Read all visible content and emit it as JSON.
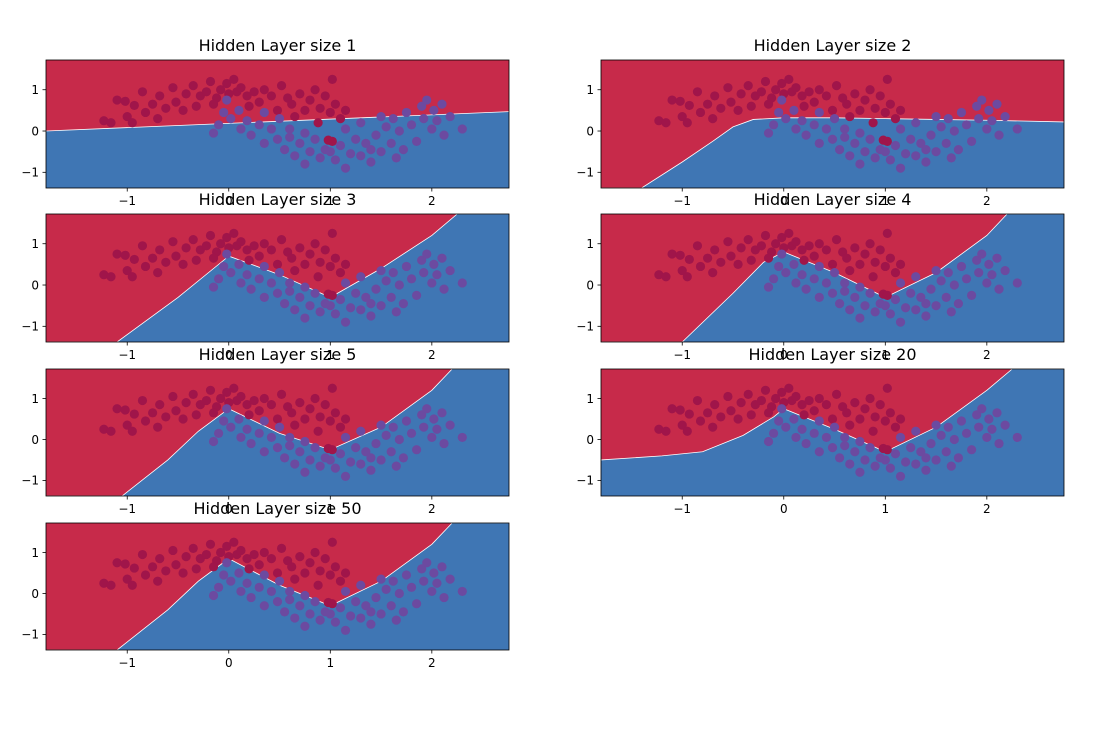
{
  "colors": {
    "class0_region": "#c72a4a",
    "class1_region": "#3f76b4",
    "class0_point": "#a0154a",
    "class1_point": "#6c4aa0",
    "axes": "#000000"
  },
  "chart_data": [
    {
      "type": "scatter",
      "title": "Hidden Layer size 1",
      "xlabel": "",
      "ylabel": "",
      "xlim": [
        -1.8,
        2.76
      ],
      "ylim": [
        -1.38,
        1.72
      ],
      "xticks": [
        -1,
        0,
        1,
        2
      ],
      "xtick_labels": [
        "−1",
        "0",
        "1",
        "2"
      ],
      "yticks": [
        -1,
        0,
        1
      ],
      "ytick_labels": [
        "−1",
        "0",
        "1"
      ],
      "boundary": {
        "x": [
          -1.8,
          2.76
        ],
        "y": [
          0.0,
          0.47
        ]
      },
      "grid": false
    },
    {
      "type": "scatter",
      "title": "Hidden Layer size 2",
      "xlabel": "",
      "ylabel": "",
      "xlim": [
        -1.8,
        2.76
      ],
      "ylim": [
        -1.38,
        1.72
      ],
      "xticks": [
        -1,
        0,
        1,
        2
      ],
      "xtick_labels": [
        "−1",
        "0",
        "1",
        "2"
      ],
      "yticks": [
        -1,
        0,
        1
      ],
      "ytick_labels": [
        "−1",
        "0",
        "1"
      ],
      "boundary": {
        "x": [
          -1.8,
          -1.4,
          -1.0,
          -0.7,
          -0.5,
          -0.3,
          0.0,
          0.5,
          1.0,
          1.5,
          2.0,
          2.76
        ],
        "y": [
          -1.38,
          -1.38,
          -0.75,
          -0.25,
          0.1,
          0.28,
          0.32,
          0.32,
          0.3,
          0.28,
          0.26,
          0.22
        ]
      },
      "grid": false
    },
    {
      "type": "scatter",
      "title": "Hidden Layer size 3",
      "xlabel": "",
      "ylabel": "",
      "xlim": [
        -1.8,
        2.76
      ],
      "ylim": [
        -1.38,
        1.72
      ],
      "xticks": [
        -1,
        0,
        1,
        2
      ],
      "xtick_labels": [
        "−1",
        "0",
        "1",
        "2"
      ],
      "yticks": [
        -1,
        0,
        1
      ],
      "ytick_labels": [
        "−1",
        "0",
        "1"
      ],
      "boundary": {
        "x": [
          -1.8,
          -1.1,
          -0.5,
          -0.1,
          0.0,
          0.5,
          1.0,
          1.5,
          2.0,
          2.25,
          2.76
        ],
        "y": [
          -1.38,
          -1.38,
          -0.3,
          0.5,
          0.7,
          0.25,
          -0.3,
          0.4,
          1.2,
          1.72,
          1.72
        ]
      },
      "grid": false
    },
    {
      "type": "scatter",
      "title": "Hidden Layer size 4",
      "xlabel": "",
      "ylabel": "",
      "xlim": [
        -1.8,
        2.76
      ],
      "ylim": [
        -1.38,
        1.72
      ],
      "xticks": [
        -1,
        0,
        1,
        2
      ],
      "xtick_labels": [
        "−1",
        "0",
        "1",
        "2"
      ],
      "yticks": [
        -1,
        0,
        1
      ],
      "ytick_labels": [
        "−1",
        "0",
        "1"
      ],
      "boundary": {
        "x": [
          -1.8,
          -1.0,
          -0.5,
          -0.2,
          0.0,
          0.5,
          1.0,
          1.5,
          2.0,
          2.2,
          2.76
        ],
        "y": [
          -1.38,
          -1.38,
          -0.2,
          0.55,
          0.8,
          0.3,
          -0.3,
          0.3,
          1.2,
          1.72,
          1.72
        ]
      },
      "grid": false
    },
    {
      "type": "scatter",
      "title": "Hidden Layer size 5",
      "xlabel": "",
      "ylabel": "",
      "xlim": [
        -1.8,
        2.76
      ],
      "ylim": [
        -1.38,
        1.72
      ],
      "xticks": [
        -1,
        0,
        1,
        2
      ],
      "xtick_labels": [
        "−1",
        "0",
        "1",
        "2"
      ],
      "yticks": [
        -1,
        0,
        1
      ],
      "ytick_labels": [
        "−1",
        "0",
        "1"
      ],
      "boundary": {
        "x": [
          -1.8,
          -1.05,
          -0.6,
          -0.3,
          0.0,
          0.5,
          1.0,
          1.5,
          2.0,
          2.2,
          2.76
        ],
        "y": [
          -1.38,
          -1.38,
          -0.5,
          0.2,
          0.75,
          0.15,
          -0.25,
          0.3,
          1.2,
          1.72,
          1.72
        ]
      },
      "grid": false
    },
    {
      "type": "scatter",
      "title": "Hidden Layer size 20",
      "xlabel": "",
      "ylabel": "",
      "xlim": [
        -1.8,
        2.76
      ],
      "ylim": [
        -1.38,
        1.72
      ],
      "xticks": [
        -1,
        0,
        1,
        2
      ],
      "xtick_labels": [
        "−1",
        "0",
        "1",
        "2"
      ],
      "yticks": [
        -1,
        0,
        1
      ],
      "ytick_labels": [
        "−1",
        "0",
        "1"
      ],
      "boundary": {
        "x": [
          -1.8,
          -1.2,
          -0.8,
          -0.4,
          -0.1,
          0.0,
          0.5,
          1.0,
          1.5,
          2.0,
          2.25,
          2.76
        ],
        "y": [
          -0.5,
          -0.4,
          -0.3,
          0.1,
          0.55,
          0.75,
          0.25,
          -0.3,
          0.3,
          1.2,
          1.72,
          1.72
        ]
      },
      "grid": false
    },
    {
      "type": "scatter",
      "title": "Hidden Layer size 50",
      "xlabel": "",
      "ylabel": "",
      "xlim": [
        -1.8,
        2.76
      ],
      "ylim": [
        -1.38,
        1.72
      ],
      "xticks": [
        -1,
        0,
        1,
        2
      ],
      "xtick_labels": [
        "−1",
        "0",
        "1",
        "2"
      ],
      "yticks": [
        -1,
        0,
        1
      ],
      "ytick_labels": [
        "−1",
        "0",
        "1"
      ],
      "boundary": {
        "x": [
          -1.8,
          -1.1,
          -0.6,
          -0.3,
          0.0,
          0.5,
          1.0,
          1.5,
          2.0,
          2.2,
          2.76
        ],
        "y": [
          -1.38,
          -1.38,
          -0.4,
          0.3,
          0.85,
          0.2,
          -0.3,
          0.3,
          1.2,
          1.72,
          1.72
        ]
      },
      "grid": false
    }
  ],
  "points": [
    {
      "x": -1.23,
      "y": 0.25,
      "c": 0
    },
    {
      "x": -1.16,
      "y": 0.2,
      "c": 0
    },
    {
      "x": -1.0,
      "y": 0.35,
      "c": 0
    },
    {
      "x": -0.95,
      "y": 0.2,
      "c": 0
    },
    {
      "x": -1.1,
      "y": 0.75,
      "c": 0
    },
    {
      "x": -1.02,
      "y": 0.72,
      "c": 0
    },
    {
      "x": -0.93,
      "y": 0.62,
      "c": 0
    },
    {
      "x": -0.85,
      "y": 0.95,
      "c": 0
    },
    {
      "x": -0.82,
      "y": 0.45,
      "c": 0
    },
    {
      "x": -0.75,
      "y": 0.65,
      "c": 0
    },
    {
      "x": -0.7,
      "y": 0.3,
      "c": 0
    },
    {
      "x": -0.68,
      "y": 0.85,
      "c": 0
    },
    {
      "x": -0.62,
      "y": 0.55,
      "c": 0
    },
    {
      "x": -0.55,
      "y": 1.05,
      "c": 0
    },
    {
      "x": -0.52,
      "y": 0.7,
      "c": 0
    },
    {
      "x": -0.45,
      "y": 0.5,
      "c": 0
    },
    {
      "x": -0.42,
      "y": 0.9,
      "c": 0
    },
    {
      "x": -0.35,
      "y": 1.1,
      "c": 0
    },
    {
      "x": -0.32,
      "y": 0.6,
      "c": 0
    },
    {
      "x": -0.28,
      "y": 0.85,
      "c": 0
    },
    {
      "x": -0.22,
      "y": 0.95,
      "c": 0
    },
    {
      "x": -0.18,
      "y": 1.2,
      "c": 0
    },
    {
      "x": -0.12,
      "y": 0.8,
      "c": 0
    },
    {
      "x": -0.08,
      "y": 1.0,
      "c": 0
    },
    {
      "x": -0.02,
      "y": 1.15,
      "c": 0
    },
    {
      "x": 0.05,
      "y": 1.25,
      "c": 0
    },
    {
      "x": 0.08,
      "y": 0.95,
      "c": 0
    },
    {
      "x": 0.12,
      "y": 1.05,
      "c": 0
    },
    {
      "x": 0.18,
      "y": 0.85,
      "c": 0
    },
    {
      "x": 0.25,
      "y": 0.95,
      "c": 0
    },
    {
      "x": 0.3,
      "y": 0.7,
      "c": 0
    },
    {
      "x": 0.35,
      "y": 1.0,
      "c": 0
    },
    {
      "x": 0.42,
      "y": 0.85,
      "c": 0
    },
    {
      "x": 0.48,
      "y": 0.5,
      "c": 0
    },
    {
      "x": 0.52,
      "y": 1.1,
      "c": 0
    },
    {
      "x": 0.58,
      "y": 0.8,
      "c": 0
    },
    {
      "x": 0.62,
      "y": 0.65,
      "c": 0
    },
    {
      "x": 0.7,
      "y": 0.9,
      "c": 0
    },
    {
      "x": 0.75,
      "y": 0.5,
      "c": 0
    },
    {
      "x": 0.8,
      "y": 0.75,
      "c": 0
    },
    {
      "x": 0.85,
      "y": 1.0,
      "c": 0
    },
    {
      "x": 0.9,
      "y": 0.55,
      "c": 0
    },
    {
      "x": 0.95,
      "y": 0.85,
      "c": 0
    },
    {
      "x": 1.0,
      "y": 0.45,
      "c": 0
    },
    {
      "x": 1.02,
      "y": 1.25,
      "c": 0
    },
    {
      "x": 1.05,
      "y": 0.65,
      "c": 0
    },
    {
      "x": 1.1,
      "y": 0.3,
      "c": 0
    },
    {
      "x": 1.15,
      "y": 0.5,
      "c": 0
    },
    {
      "x": 0.98,
      "y": -0.22,
      "c": 0
    },
    {
      "x": 1.02,
      "y": -0.25,
      "c": 0
    },
    {
      "x": -0.15,
      "y": 0.65,
      "c": 0
    },
    {
      "x": 0.0,
      "y": 0.9,
      "c": 0
    },
    {
      "x": 0.2,
      "y": 0.6,
      "c": 0
    },
    {
      "x": 0.65,
      "y": 0.35,
      "c": 0
    },
    {
      "x": 0.88,
      "y": 0.2,
      "c": 0
    },
    {
      "x": -0.02,
      "y": 0.75,
      "c": 1
    },
    {
      "x": 0.02,
      "y": 0.3,
      "c": 1
    },
    {
      "x": -0.1,
      "y": 0.15,
      "c": 1
    },
    {
      "x": 0.1,
      "y": 0.5,
      "c": 1
    },
    {
      "x": 0.12,
      "y": 0.05,
      "c": 1
    },
    {
      "x": 0.18,
      "y": 0.25,
      "c": 1
    },
    {
      "x": 0.22,
      "y": -0.1,
      "c": 1
    },
    {
      "x": 0.3,
      "y": 0.15,
      "c": 1
    },
    {
      "x": 0.35,
      "y": -0.3,
      "c": 1
    },
    {
      "x": 0.42,
      "y": 0.05,
      "c": 1
    },
    {
      "x": 0.48,
      "y": -0.2,
      "c": 1
    },
    {
      "x": 0.55,
      "y": -0.45,
      "c": 1
    },
    {
      "x": 0.6,
      "y": -0.15,
      "c": 1
    },
    {
      "x": 0.65,
      "y": -0.6,
      "c": 1
    },
    {
      "x": 0.7,
      "y": -0.3,
      "c": 1
    },
    {
      "x": 0.75,
      "y": -0.8,
      "c": 1
    },
    {
      "x": 0.8,
      "y": -0.5,
      "c": 1
    },
    {
      "x": 0.85,
      "y": -0.2,
      "c": 1
    },
    {
      "x": 0.9,
      "y": -0.65,
      "c": 1
    },
    {
      "x": 0.95,
      "y": -0.45,
      "c": 1
    },
    {
      "x": 1.05,
      "y": -0.7,
      "c": 1
    },
    {
      "x": 1.1,
      "y": -0.35,
      "c": 1
    },
    {
      "x": 1.15,
      "y": -0.9,
      "c": 1
    },
    {
      "x": 1.2,
      "y": -0.55,
      "c": 1
    },
    {
      "x": 1.25,
      "y": -0.2,
      "c": 1
    },
    {
      "x": 1.3,
      "y": -0.6,
      "c": 1
    },
    {
      "x": 1.35,
      "y": -0.3,
      "c": 1
    },
    {
      "x": 1.4,
      "y": -0.75,
      "c": 1
    },
    {
      "x": 1.45,
      "y": -0.1,
      "c": 1
    },
    {
      "x": 1.5,
      "y": -0.5,
      "c": 1
    },
    {
      "x": 1.55,
      "y": 0.1,
      "c": 1
    },
    {
      "x": 1.6,
      "y": -0.3,
      "c": 1
    },
    {
      "x": 1.62,
      "y": 0.3,
      "c": 1
    },
    {
      "x": 1.68,
      "y": 0.0,
      "c": 1
    },
    {
      "x": 1.72,
      "y": -0.45,
      "c": 1
    },
    {
      "x": 1.75,
      "y": 0.45,
      "c": 1
    },
    {
      "x": 1.8,
      "y": 0.15,
      "c": 1
    },
    {
      "x": 1.85,
      "y": -0.25,
      "c": 1
    },
    {
      "x": 1.9,
      "y": 0.6,
      "c": 1
    },
    {
      "x": 1.92,
      "y": 0.3,
      "c": 1
    },
    {
      "x": 1.95,
      "y": 0.75,
      "c": 1
    },
    {
      "x": 2.0,
      "y": 0.05,
      "c": 1
    },
    {
      "x": 2.02,
      "y": 0.5,
      "c": 1
    },
    {
      "x": 2.05,
      "y": 0.25,
      "c": 1
    },
    {
      "x": 2.1,
      "y": 0.65,
      "c": 1
    },
    {
      "x": 2.12,
      "y": -0.1,
      "c": 1
    },
    {
      "x": 2.18,
      "y": 0.35,
      "c": 1
    },
    {
      "x": 2.3,
      "y": 0.05,
      "c": 1
    },
    {
      "x": 1.5,
      "y": 0.35,
      "c": 1
    },
    {
      "x": 1.3,
      "y": 0.2,
      "c": 1
    },
    {
      "x": 1.15,
      "y": 0.05,
      "c": 1
    },
    {
      "x": 0.5,
      "y": 0.3,
      "c": 1
    },
    {
      "x": 0.6,
      "y": 0.05,
      "c": 1
    },
    {
      "x": 0.35,
      "y": 0.45,
      "c": 1
    },
    {
      "x": -0.05,
      "y": 0.45,
      "c": 1
    },
    {
      "x": -0.15,
      "y": -0.05,
      "c": 1
    },
    {
      "x": 0.75,
      "y": -0.05,
      "c": 1
    },
    {
      "x": 1.0,
      "y": -0.5,
      "c": 1
    },
    {
      "x": 1.65,
      "y": -0.65,
      "c": 1
    },
    {
      "x": 1.4,
      "y": -0.45,
      "c": 1
    }
  ]
}
